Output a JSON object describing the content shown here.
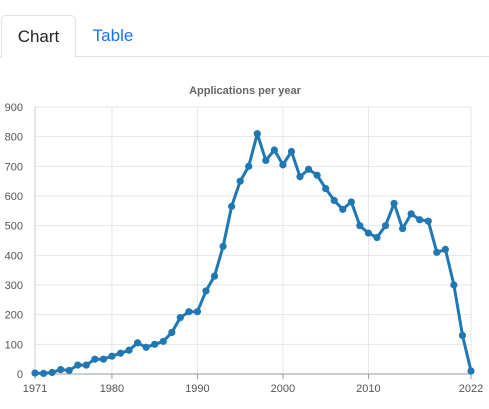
{
  "tabs": [
    {
      "label": "Chart",
      "active": true
    },
    {
      "label": "Table",
      "active": false
    }
  ],
  "colors": {
    "line": "#1f77b4",
    "grid": "#e6e6e6",
    "active_tab_border": "#dee2e6",
    "link": "#1a73e8"
  },
  "chart_data": {
    "type": "line",
    "title": "Applications per year",
    "xlabel": "",
    "ylabel": "",
    "xlim": [
      1971,
      2022
    ],
    "ylim": [
      0,
      900
    ],
    "x_ticks": [
      1971,
      1980,
      1990,
      2000,
      2010,
      2022
    ],
    "y_ticks": [
      0,
      100,
      200,
      300,
      400,
      500,
      600,
      700,
      800,
      900
    ],
    "grid": true,
    "legend": "none",
    "series": [
      {
        "x": [
          1971,
          1972,
          1973,
          1974,
          1975,
          1976,
          1977,
          1978,
          1979,
          1980,
          1981,
          1982,
          1983,
          1984,
          1985,
          1986,
          1987,
          1988,
          1989,
          1990,
          1991,
          1992,
          1993,
          1994,
          1995,
          1996,
          1997,
          1998,
          1999,
          2000,
          2001,
          2002,
          2003,
          2004,
          2005,
          2006,
          2007,
          2008,
          2009,
          2010,
          2011,
          2012,
          2013,
          2014,
          2015,
          2016,
          2017,
          2018,
          2019,
          2020,
          2021,
          2022
        ],
        "values": [
          3,
          2,
          5,
          15,
          12,
          30,
          30,
          50,
          50,
          60,
          70,
          80,
          105,
          90,
          100,
          110,
          140,
          190,
          210,
          210,
          280,
          330,
          430,
          565,
          650,
          700,
          810,
          720,
          755,
          705,
          750,
          665,
          690,
          670,
          625,
          585,
          555,
          580,
          500,
          475,
          460,
          500,
          575,
          490,
          540,
          520,
          515,
          410,
          420,
          300,
          130,
          10
        ]
      }
    ]
  }
}
